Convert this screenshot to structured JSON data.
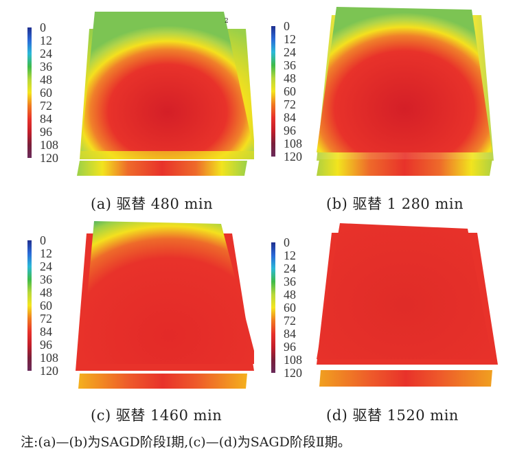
{
  "colorbar": {
    "ticks": [
      "0",
      "12",
      "24",
      "36",
      "48",
      "60",
      "72",
      "84",
      "96",
      "108",
      "120"
    ],
    "colors": [
      "#6a2a5a",
      "#7a1f3a",
      "#c41e2a",
      "#e8322a",
      "#f07a20",
      "#f4e51e",
      "#b8d83a",
      "#3ebb4a",
      "#2bb8d8",
      "#2a6ad8",
      "#1f2f8f"
    ]
  },
  "panels": [
    {
      "id": "a",
      "caption": "(a) 驱替 480 min"
    },
    {
      "id": "b",
      "caption": "(b) 驱替 1 280 min"
    },
    {
      "id": "c",
      "caption": "(c) 驱替 1460 min"
    },
    {
      "id": "d",
      "caption": "(d) 驱替 1520 min"
    }
  ],
  "corner_mark": "2",
  "note": "注:(a)—(b)为SAGD阶段Ⅰ期,(c)—(d)为SAGD阶段Ⅱ期。"
}
